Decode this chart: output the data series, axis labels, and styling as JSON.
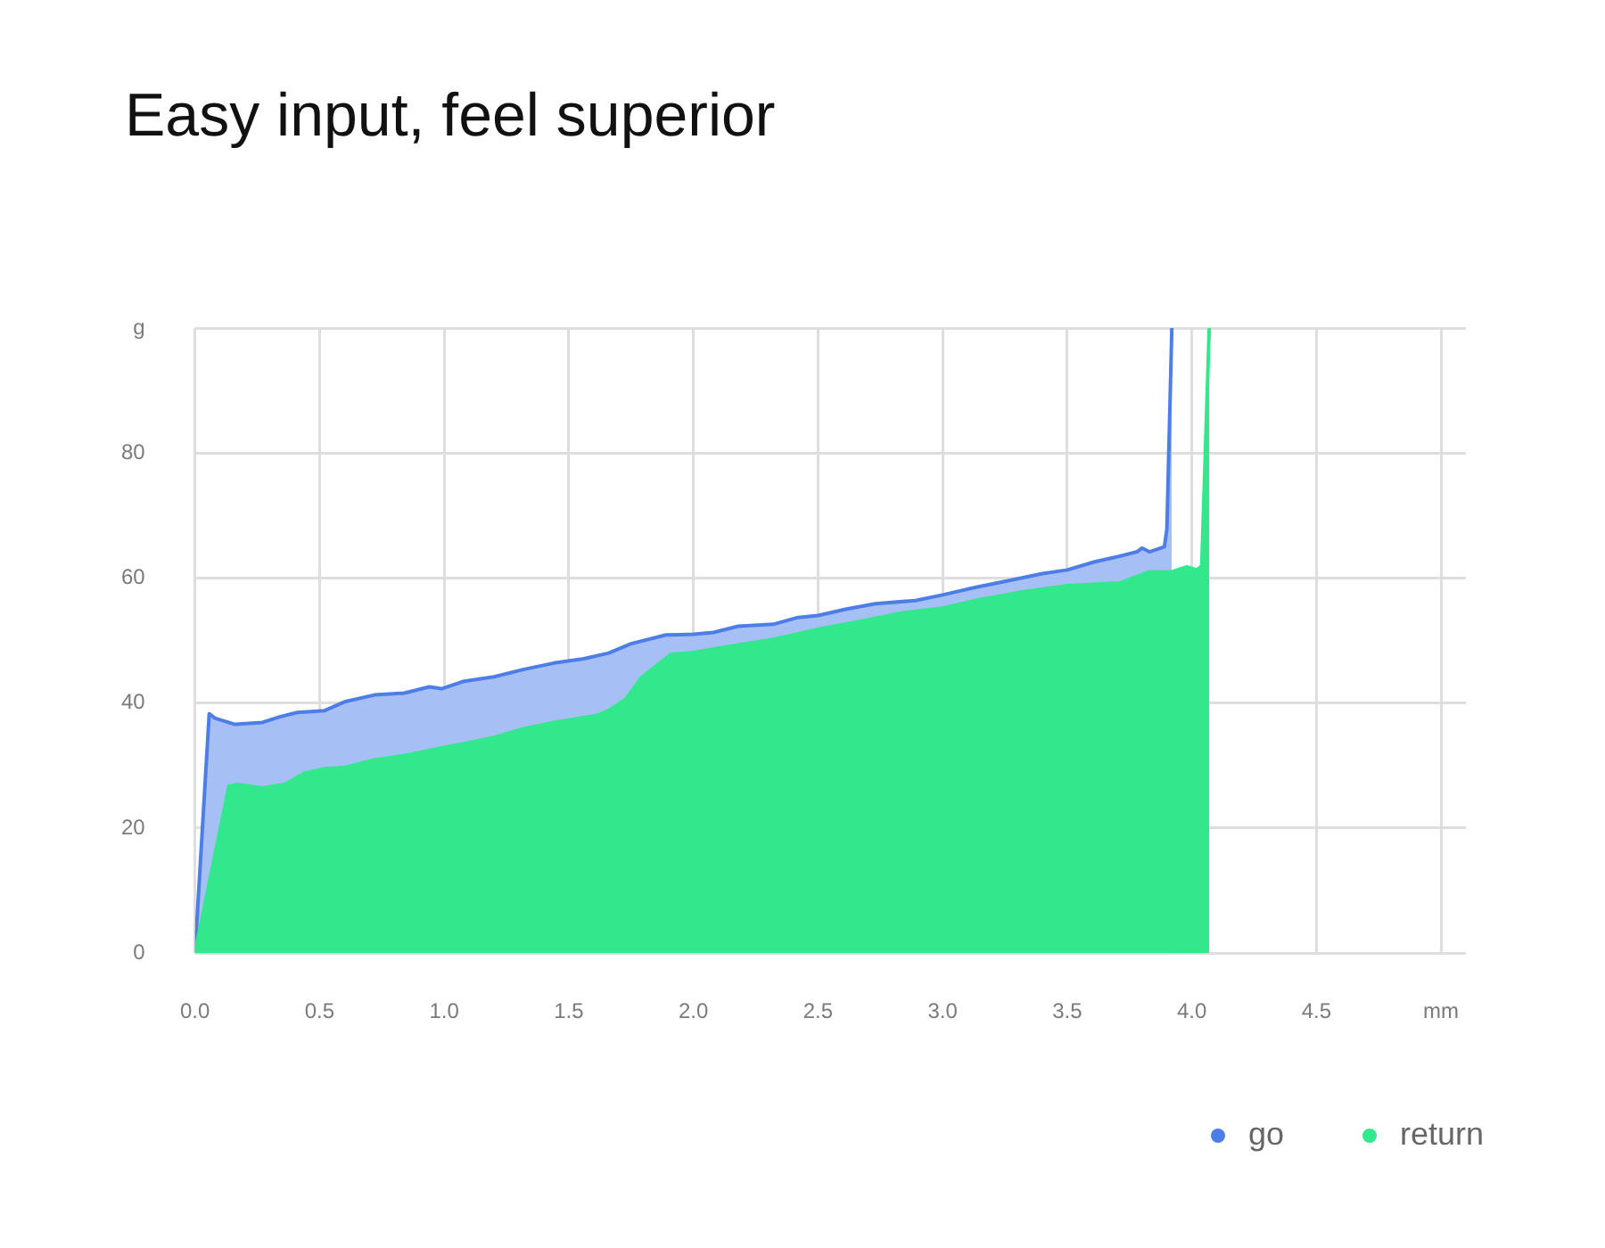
{
  "chart_data": {
    "type": "area",
    "title": "Easy input, feel superior",
    "xlim": [
      0,
      5.1
    ],
    "xticks": [
      {
        "value": 0,
        "label": "0.0"
      },
      0.5,
      {
        "value": 1,
        "label": "1.0"
      },
      1.5,
      {
        "value": 2,
        "label": "2.0"
      },
      2.5,
      {
        "value": 3,
        "label": "3.0"
      },
      3.5,
      {
        "value": 4,
        "label": "4.0"
      },
      4.5,
      {
        "value": 5,
        "label": "mm"
      }
    ],
    "ylim": [
      0,
      100
    ],
    "yticks": [
      0,
      20,
      40,
      60,
      80,
      {
        "value": 100,
        "label": "g"
      }
    ],
    "grid": true,
    "legend": "bottom right",
    "marker": "none",
    "series": [
      {
        "name": "go",
        "color": "#4d7ee8",
        "x": [
          0,
          0.057,
          0.08,
          0.16,
          0.27,
          0.34,
          0.41,
          0.52,
          0.6,
          0.72,
          0.84,
          0.94,
          0.99,
          1.08,
          1.2,
          1.32,
          1.44,
          1.56,
          1.66,
          1.75,
          1.89,
          2.0,
          2.08,
          2.18,
          2.32,
          2.42,
          2.5,
          2.61,
          2.73,
          2.89,
          3.0,
          3.13,
          3.28,
          3.4,
          3.5,
          3.61,
          3.71,
          3.78,
          3.8,
          3.83,
          3.89,
          3.9,
          3.92
        ],
        "values": [
          0,
          38.3,
          37.6,
          36.6,
          36.9,
          37.8,
          38.5,
          38.8,
          40.2,
          41.3,
          41.6,
          42.6,
          42.3,
          43.5,
          44.2,
          45.4,
          46.4,
          47.1,
          48.0,
          49.5,
          50.9,
          51.0,
          51.3,
          52.3,
          52.6,
          53.7,
          54.0,
          55.0,
          55.9,
          56.4,
          57.3,
          58.5,
          59.7,
          60.7,
          61.3,
          62.6,
          63.5,
          64.2,
          64.8,
          64.2,
          65.0,
          67.8,
          100
        ]
      },
      {
        "name": "return",
        "color": "#33e88c",
        "x": [
          0,
          0.136,
          0.17,
          0.27,
          0.36,
          0.44,
          0.52,
          0.6,
          0.72,
          0.84,
          0.94,
          1.01,
          1.08,
          1.2,
          1.32,
          1.44,
          1.61,
          1.66,
          1.73,
          1.79,
          1.91,
          2.0,
          2.13,
          2.32,
          2.5,
          2.66,
          2.85,
          3.0,
          3.13,
          3.32,
          3.5,
          3.71,
          3.83,
          3.92,
          3.98,
          4.02,
          4.04,
          4.07
        ],
        "values": [
          0,
          26.7,
          27.0,
          26.4,
          27.0,
          28.8,
          29.5,
          29.7,
          30.9,
          31.6,
          32.4,
          33.0,
          33.5,
          34.5,
          35.9,
          36.9,
          38.0,
          38.8,
          40.7,
          44.0,
          47.8,
          48.1,
          49.0,
          50.2,
          51.8,
          53.0,
          54.5,
          55.2,
          56.4,
          57.8,
          58.8,
          59.2,
          61.0,
          61.0,
          61.8,
          61.3,
          61.9,
          100
        ]
      }
    ]
  }
}
